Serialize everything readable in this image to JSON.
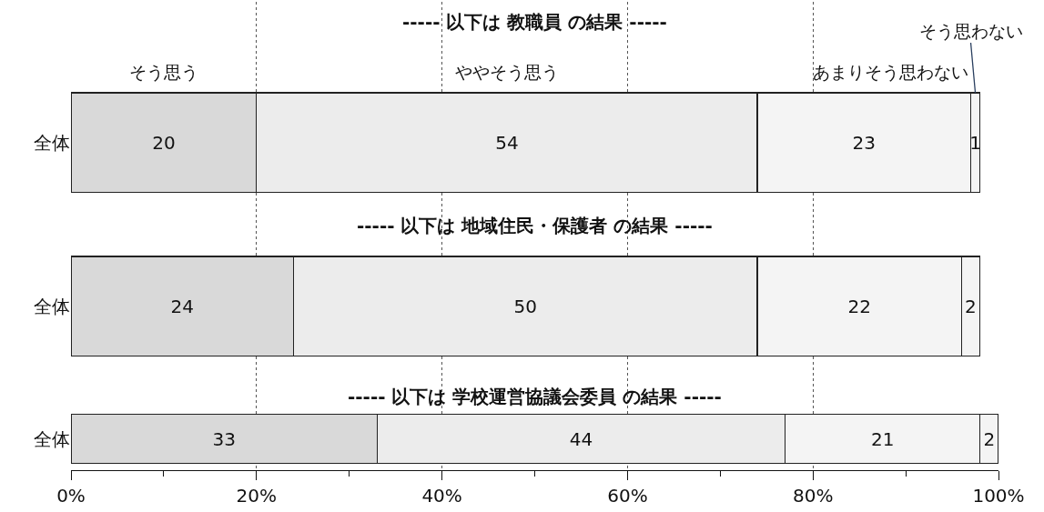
{
  "chart_data": {
    "type": "bar",
    "orientation": "horizontal",
    "stacked": true,
    "categories": [
      "全体",
      "全体",
      "全体"
    ],
    "series": [
      {
        "name": "そう思う",
        "color": "#d9d9d9",
        "values": [
          20,
          24,
          33
        ]
      },
      {
        "name": "ややそう思う",
        "color": "#ececec",
        "values": [
          54,
          50,
          44
        ]
      },
      {
        "name": "あまりそう思わない",
        "color": "#f4f4f4",
        "values": [
          23,
          22,
          21
        ]
      },
      {
        "name": "そう思わない",
        "color": "#f4f4f4",
        "values": [
          1,
          2,
          2
        ]
      }
    ],
    "annotations": [
      "----- 以下は 教職員 の結果 -----",
      "----- 以下は 地域住民・保護者 の結果 -----",
      "----- 以下は 学校運営協議会委員 の結果 -----"
    ],
    "data_labels": true,
    "xlim": [
      0,
      100
    ],
    "xticks": [
      {
        "value": 0,
        "label": "0%"
      },
      {
        "value": 10,
        "label": null
      },
      {
        "value": 20,
        "label": "20%"
      },
      {
        "value": 30,
        "label": null
      },
      {
        "value": 40,
        "label": "40%"
      },
      {
        "value": 50,
        "label": null
      },
      {
        "value": 60,
        "label": "60%"
      },
      {
        "value": 70,
        "label": null
      },
      {
        "value": 80,
        "label": "80%"
      },
      {
        "value": 90,
        "label": null
      },
      {
        "value": 100,
        "label": "100%"
      }
    ],
    "grid": "x",
    "legend": false
  }
}
